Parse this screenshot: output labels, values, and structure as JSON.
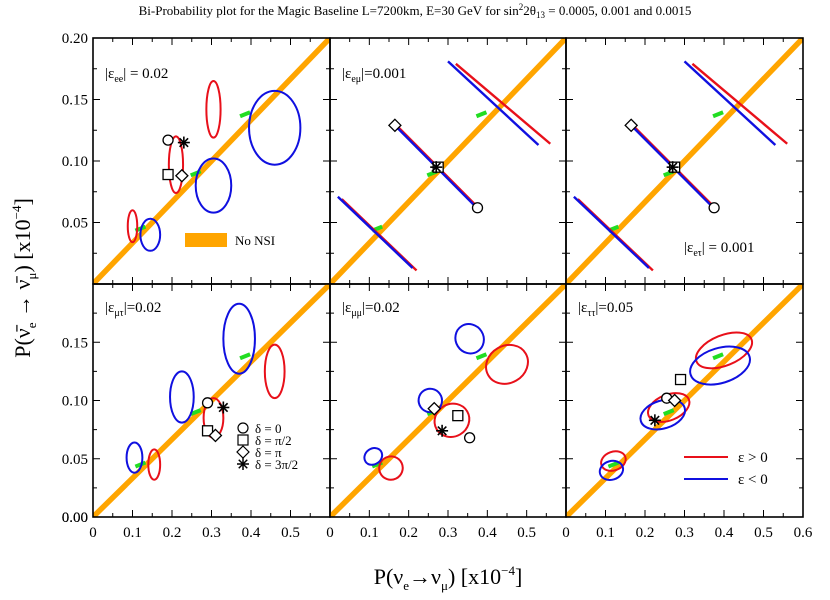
{
  "figure": {
    "title": "Bi-Probability plot for the Magic Baseline L=7200km, E=30 GeV for sin²2θ₁₃ = 0.0005, 0.001 and 0.0015",
    "title_parts": [
      "Bi-Probability plot for the Magic Baseline L=7200km, E=30 GeV for sin",
      "2",
      "2θ",
      "13",
      " = 0.0005, 0.001 and 0.0015"
    ],
    "xlabel": "P(νe→νμ) [x10⁻⁴]",
    "ylabel": "P(ν̄e → ν̄μ) [x10⁻⁴]",
    "colors": {
      "positive": "#e8101a",
      "negative": "#1010e0",
      "no_nsi": "#ffa500",
      "marker": "#22dd22"
    }
  },
  "chart_data": {
    "type": "scatter",
    "layout": "2x3 panel grid",
    "xlim": [
      0,
      0.6
    ],
    "ylim": [
      0,
      0.2
    ],
    "x_ticks_bottom": [
      [
        "0",
        "0.1",
        "0.2",
        "0.3",
        "0.4",
        "0.5"
      ],
      [
        "0",
        "0.1",
        "0.2",
        "0.3",
        "0.4",
        "0.5"
      ],
      [
        "0",
        "0.1",
        "0.2",
        "0.3",
        "0.4",
        "0.5",
        "0.6"
      ]
    ],
    "y_ticks": [
      [
        "0.05",
        "0.10",
        "0.15",
        "0.20"
      ],
      [
        "0.00",
        "0.05",
        "0.10",
        "0.15"
      ]
    ],
    "no_nsi_line": [
      [
        0,
        0
      ],
      [
        0.6,
        0.2
      ]
    ],
    "no_nsi_points": [
      [
        0.12,
        0.045
      ],
      [
        0.26,
        0.09
      ],
      [
        0.385,
        0.138
      ]
    ],
    "delta_legend": [
      "δ = 0",
      "δ = π/2",
      "δ = π",
      "δ = 3π/2"
    ],
    "epsilon_legend": [
      "ε > 0",
      "ε < 0"
    ],
    "no_nsi_legend": "No NSI",
    "panels": [
      {
        "label": "|εee| = 0.02",
        "sub": "ee",
        "sep": " = ",
        "val": "0.02",
        "ellipses": [
          {
            "color": "red",
            "cx": 0.1,
            "cy": 0.047,
            "rx": 0.012,
            "ry": 0.013
          },
          {
            "color": "red",
            "cx": 0.21,
            "cy": 0.097,
            "rx": 0.018,
            "ry": 0.023
          },
          {
            "color": "red",
            "cx": 0.305,
            "cy": 0.142,
            "rx": 0.018,
            "ry": 0.023
          },
          {
            "color": "blue",
            "cx": 0.145,
            "cy": 0.04,
            "rx": 0.025,
            "ry": 0.013
          },
          {
            "color": "blue",
            "cx": 0.305,
            "cy": 0.08,
            "rx": 0.045,
            "ry": 0.022
          },
          {
            "color": "blue",
            "cx": 0.46,
            "cy": 0.127,
            "rx": 0.065,
            "ry": 0.03
          }
        ],
        "symbols": [
          {
            "delta": "0",
            "x": 0.19,
            "y": 0.117
          },
          {
            "delta": "pi/2",
            "x": 0.19,
            "y": 0.089
          },
          {
            "delta": "pi",
            "x": 0.225,
            "y": 0.088
          },
          {
            "delta": "3pi/2",
            "x": 0.23,
            "y": 0.115
          }
        ]
      },
      {
        "label": "|εeμ|=0.001",
        "sub": "eμ",
        "sep": "=",
        "val": "0.001",
        "bands": [
          {
            "color": "red",
            "from": [
              0.32,
              0.18
            ],
            "to": [
              0.56,
              0.115
            ],
            "offset": 3
          },
          {
            "color": "blue",
            "from": [
              0.3,
              0.18
            ],
            "to": [
              0.53,
              0.112
            ],
            "offset": -3
          },
          {
            "color": "red",
            "from": [
              0.175,
              0.128
            ],
            "to": [
              0.38,
              0.062
            ],
            "offset": 3
          },
          {
            "color": "blue",
            "from": [
              0.165,
              0.128
            ],
            "to": [
              0.37,
              0.062
            ],
            "offset": -3
          },
          {
            "color": "red",
            "from": [
              0.03,
              0.07
            ],
            "to": [
              0.22,
              0.012
            ],
            "offset": 3
          },
          {
            "color": "blue",
            "from": [
              0.02,
              0.07
            ],
            "to": [
              0.21,
              0.012
            ],
            "offset": -3
          }
        ],
        "symbols": [
          {
            "delta": "0",
            "x": 0.375,
            "y": 0.062
          },
          {
            "delta": "pi/2",
            "x": 0.275,
            "y": 0.095
          },
          {
            "delta": "pi",
            "x": 0.165,
            "y": 0.129
          },
          {
            "delta": "3pi/2",
            "x": 0.27,
            "y": 0.095
          }
        ]
      },
      {
        "label": "|εeτ| = 0.001",
        "sub": "eτ",
        "sep": " = ",
        "val": "0.001",
        "bands": [
          {
            "color": "red",
            "from": [
              0.32,
              0.18
            ],
            "to": [
              0.56,
              0.115
            ],
            "offset": 3
          },
          {
            "color": "blue",
            "from": [
              0.3,
              0.18
            ],
            "to": [
              0.53,
              0.112
            ],
            "offset": -3
          },
          {
            "color": "red",
            "from": [
              0.175,
              0.128
            ],
            "to": [
              0.38,
              0.062
            ],
            "offset": 3
          },
          {
            "color": "blue",
            "from": [
              0.165,
              0.128
            ],
            "to": [
              0.37,
              0.062
            ],
            "offset": -3
          },
          {
            "color": "red",
            "from": [
              0.03,
              0.07
            ],
            "to": [
              0.22,
              0.012
            ],
            "offset": 3
          },
          {
            "color": "blue",
            "from": [
              0.02,
              0.07
            ],
            "to": [
              0.21,
              0.012
            ],
            "offset": -3
          }
        ],
        "symbols": [
          {
            "delta": "0",
            "x": 0.375,
            "y": 0.062
          },
          {
            "delta": "pi/2",
            "x": 0.275,
            "y": 0.095
          },
          {
            "delta": "pi",
            "x": 0.165,
            "y": 0.129
          },
          {
            "delta": "3pi/2",
            "x": 0.27,
            "y": 0.095
          }
        ]
      },
      {
        "label": "|εμτ|=0.02",
        "sub": "μτ",
        "sep": "=",
        "val": "0.02",
        "ellipses": [
          {
            "color": "red",
            "cx": 0.155,
            "cy": 0.045,
            "rx": 0.015,
            "ry": 0.013
          },
          {
            "color": "red",
            "cx": 0.305,
            "cy": 0.085,
            "rx": 0.025,
            "ry": 0.017
          },
          {
            "color": "red",
            "cx": 0.46,
            "cy": 0.125,
            "rx": 0.025,
            "ry": 0.023
          },
          {
            "color": "blue",
            "cx": 0.105,
            "cy": 0.051,
            "rx": 0.02,
            "ry": 0.013
          },
          {
            "color": "blue",
            "cx": 0.225,
            "cy": 0.103,
            "rx": 0.03,
            "ry": 0.022
          },
          {
            "color": "blue",
            "cx": 0.37,
            "cy": 0.153,
            "rx": 0.04,
            "ry": 0.03
          }
        ],
        "symbols": [
          {
            "delta": "0",
            "x": 0.29,
            "y": 0.098
          },
          {
            "delta": "pi/2",
            "x": 0.29,
            "y": 0.074
          },
          {
            "delta": "pi",
            "x": 0.31,
            "y": 0.07
          },
          {
            "delta": "3pi/2",
            "x": 0.33,
            "y": 0.094
          }
        ],
        "has_delta_legend": true
      },
      {
        "label": "|εμμ|=0.02",
        "sub": "μμ",
        "sep": "=",
        "val": "0.02",
        "ellipses": [
          {
            "color": "red",
            "cx": 0.155,
            "cy": 0.042,
            "rx": 0.03,
            "ry": 0.01,
            "rot": -25
          },
          {
            "color": "red",
            "cx": 0.31,
            "cy": 0.083,
            "rx": 0.045,
            "ry": 0.014,
            "rot": -30
          },
          {
            "color": "red",
            "cx": 0.45,
            "cy": 0.131,
            "rx": 0.055,
            "ry": 0.016,
            "rot": -30
          },
          {
            "color": "blue",
            "cx": 0.11,
            "cy": 0.052,
            "rx": 0.02,
            "ry": 0.008,
            "rot": 55
          },
          {
            "color": "blue",
            "cx": 0.255,
            "cy": 0.1,
            "rx": 0.03,
            "ry": 0.01,
            "rot": 55
          },
          {
            "color": "blue",
            "cx": 0.355,
            "cy": 0.153,
            "rx": 0.038,
            "ry": 0.012,
            "rot": 58
          }
        ],
        "symbols": [
          {
            "delta": "0",
            "x": 0.355,
            "y": 0.068
          },
          {
            "delta": "pi/2",
            "x": 0.325,
            "y": 0.087
          },
          {
            "delta": "pi",
            "x": 0.265,
            "y": 0.093
          },
          {
            "delta": "3pi/2",
            "x": 0.285,
            "y": 0.074
          }
        ]
      },
      {
        "label": "|εττ|=0.05",
        "sub": "ττ",
        "sep": "=",
        "val": "0.05",
        "ellipses": [
          {
            "color": "red",
            "cx": 0.12,
            "cy": 0.048,
            "rx": 0.032,
            "ry": 0.008,
            "rot": -20
          },
          {
            "color": "red",
            "cx": 0.26,
            "cy": 0.094,
            "rx": 0.055,
            "ry": 0.011,
            "rot": -22
          },
          {
            "color": "red",
            "cx": 0.4,
            "cy": 0.143,
            "rx": 0.075,
            "ry": 0.013,
            "rot": -22
          },
          {
            "color": "blue",
            "cx": 0.115,
            "cy": 0.04,
            "rx": 0.03,
            "ry": 0.008,
            "rot": -17
          },
          {
            "color": "blue",
            "cx": 0.245,
            "cy": 0.088,
            "rx": 0.058,
            "ry": 0.012,
            "rot": -17
          },
          {
            "color": "blue",
            "cx": 0.39,
            "cy": 0.13,
            "rx": 0.078,
            "ry": 0.015,
            "rot": -17
          }
        ],
        "symbols": [
          {
            "delta": "0",
            "x": 0.255,
            "y": 0.102
          },
          {
            "delta": "pi/2",
            "x": 0.29,
            "y": 0.118
          },
          {
            "delta": "pi",
            "x": 0.275,
            "y": 0.1
          },
          {
            "delta": "3pi/2",
            "x": 0.225,
            "y": 0.083
          }
        ],
        "has_eps_legend": true
      }
    ]
  }
}
